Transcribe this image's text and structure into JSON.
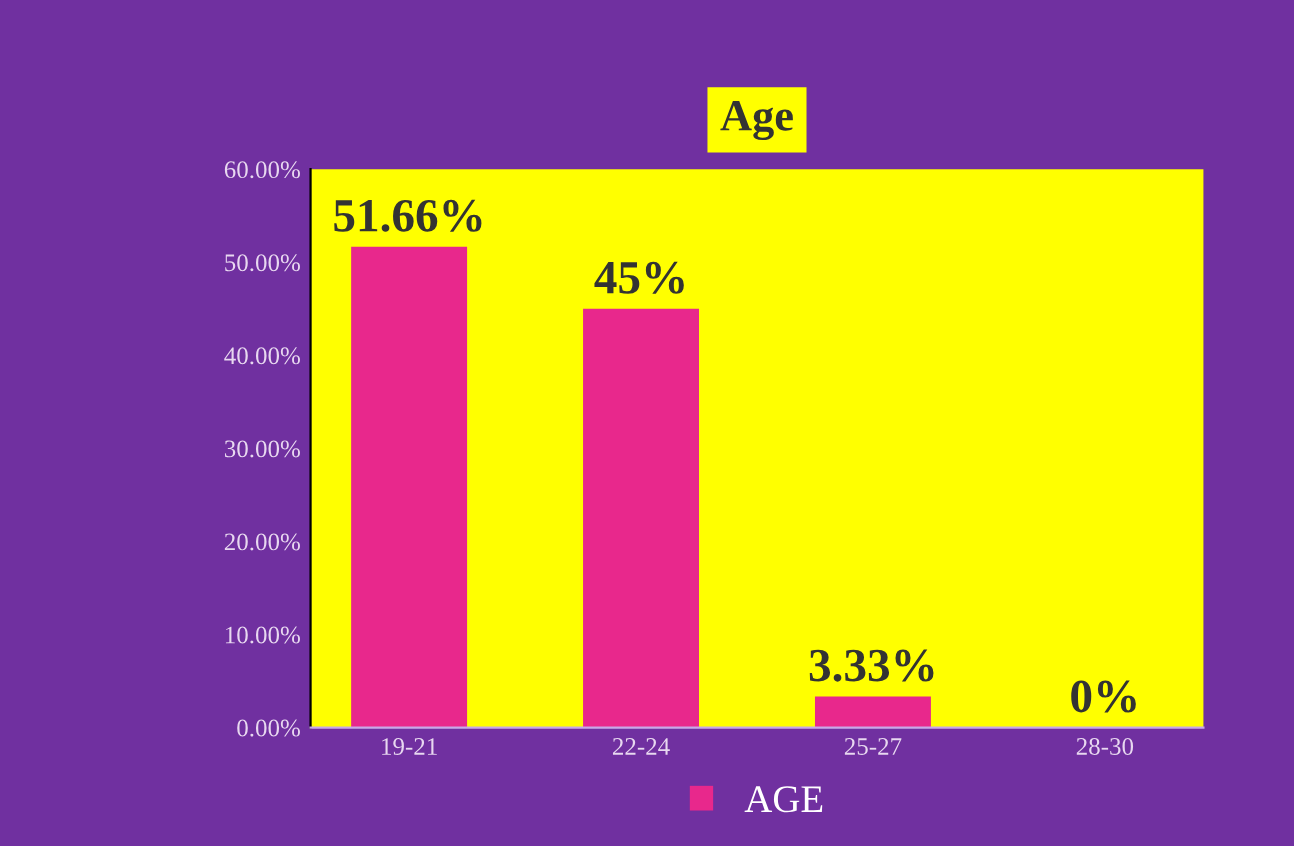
{
  "chart_data": {
    "type": "bar",
    "title": "Age",
    "categories": [
      "19-21",
      "22-24",
      "25-27",
      "28-30"
    ],
    "series": [
      {
        "name": "AGE",
        "color": "#e8288c",
        "values": [
          51.66,
          45,
          3.33,
          0
        ]
      }
    ],
    "value_labels": [
      "51.66%",
      "45%",
      "3.33%",
      "0%"
    ],
    "ylim": [
      0,
      60
    ],
    "yticks": [
      {
        "value": 0,
        "label": "0.00%"
      },
      {
        "value": 10,
        "label": "10.00%"
      },
      {
        "value": 20,
        "label": "20.00%"
      },
      {
        "value": 30,
        "label": "30.00%"
      },
      {
        "value": 40,
        "label": "40.00%"
      },
      {
        "value": 50,
        "label": "50.00%"
      },
      {
        "value": 60,
        "label": "60.00%"
      }
    ],
    "grid": false,
    "legend": "bottom"
  }
}
